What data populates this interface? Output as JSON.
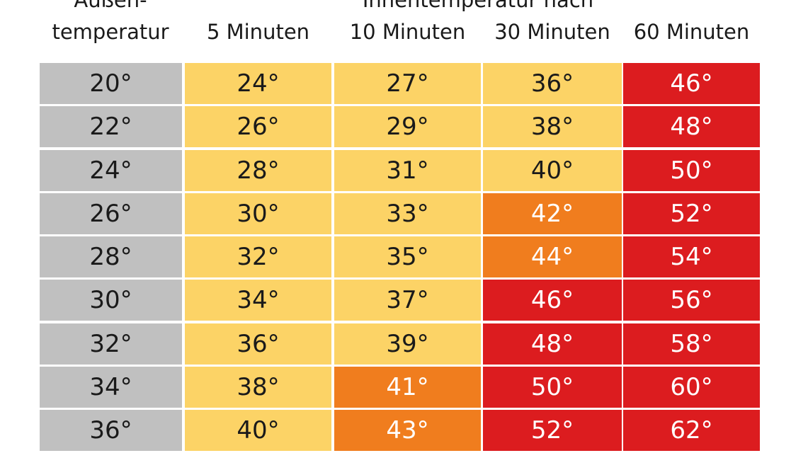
{
  "header": {
    "outside_line1": "Außen-",
    "outside_line2": "temperatur",
    "inside_title": "Innentemperatur nach",
    "columns": [
      "5 Minuten",
      "10 Minuten",
      "30 Minuten",
      "60 Minuten"
    ]
  },
  "colors": {
    "grey": "#c0c0c0",
    "yellow": "#fcd366",
    "orange": "#f07d1e",
    "red": "#dc1c1f"
  },
  "rows": [
    {
      "outside": "20°",
      "values": [
        "24°",
        "27°",
        "36°",
        "46°"
      ],
      "levels": [
        "yellow",
        "yellow",
        "yellow",
        "red"
      ]
    },
    {
      "outside": "22°",
      "values": [
        "26°",
        "29°",
        "38°",
        "48°"
      ],
      "levels": [
        "yellow",
        "yellow",
        "yellow",
        "red"
      ]
    },
    {
      "outside": "24°",
      "values": [
        "28°",
        "31°",
        "40°",
        "50°"
      ],
      "levels": [
        "yellow",
        "yellow",
        "yellow",
        "red"
      ]
    },
    {
      "outside": "26°",
      "values": [
        "30°",
        "33°",
        "42°",
        "52°"
      ],
      "levels": [
        "yellow",
        "yellow",
        "orange",
        "red"
      ]
    },
    {
      "outside": "28°",
      "values": [
        "32°",
        "35°",
        "44°",
        "54°"
      ],
      "levels": [
        "yellow",
        "yellow",
        "orange",
        "red"
      ]
    },
    {
      "outside": "30°",
      "values": [
        "34°",
        "37°",
        "46°",
        "56°"
      ],
      "levels": [
        "yellow",
        "yellow",
        "red",
        "red"
      ]
    },
    {
      "outside": "32°",
      "values": [
        "36°",
        "39°",
        "48°",
        "58°"
      ],
      "levels": [
        "yellow",
        "yellow",
        "red",
        "red"
      ]
    },
    {
      "outside": "34°",
      "values": [
        "38°",
        "41°",
        "50°",
        "60°"
      ],
      "levels": [
        "yellow",
        "orange",
        "red",
        "red"
      ]
    },
    {
      "outside": "36°",
      "values": [
        "40°",
        "43°",
        "52°",
        "62°"
      ],
      "levels": [
        "yellow",
        "orange",
        "red",
        "red"
      ]
    }
  ]
}
